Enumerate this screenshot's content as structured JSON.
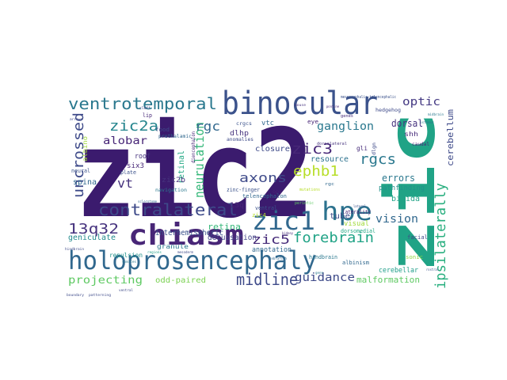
{
  "words": [
    {
      "text": "zic2",
      "color": "#3b1b6e"
    },
    {
      "text": "zic",
      "color": "#20a386"
    },
    {
      "text": "binocular",
      "color": "#3b528b"
    },
    {
      "text": "holoprosencephaly",
      "color": "#31688e"
    },
    {
      "text": "chiasm",
      "color": "#482677"
    },
    {
      "text": "hpe",
      "color": "#2c728e"
    },
    {
      "text": "zic1",
      "color": "#31688e"
    },
    {
      "text": "ventrotemporal",
      "color": "#2a788e"
    },
    {
      "text": "uncrossed",
      "color": "#3e4a89"
    },
    {
      "text": "contralateral",
      "color": "#3e4a89"
    },
    {
      "text": "ipsilaterally",
      "color": "#29af7f"
    },
    {
      "text": "midline",
      "color": "#3e4a89"
    },
    {
      "text": "neurulation",
      "color": "#35b779"
    },
    {
      "text": "ephb1",
      "color": "#b8de29"
    },
    {
      "text": "zic3",
      "color": "#482878"
    },
    {
      "text": "rgcs",
      "color": "#2a788e"
    },
    {
      "text": "13q32",
      "color": "#46337e"
    },
    {
      "text": "zic2a",
      "color": "#25858e"
    },
    {
      "text": "forebrain",
      "color": "#20a386"
    },
    {
      "text": "axons",
      "color": "#3e4a89"
    },
    {
      "text": "zic5",
      "color": "#472c7a"
    },
    {
      "text": "guidance",
      "color": "#3e4a89"
    },
    {
      "text": "vision",
      "color": "#31688e"
    },
    {
      "text": "projecting",
      "color": "#5ec962"
    },
    {
      "text": "ganglion",
      "color": "#2a788e"
    },
    {
      "text": "optic",
      "color": "#443983"
    },
    {
      "text": "alobar",
      "color": "#482677"
    },
    {
      "text": "rgc",
      "color": "#31688e"
    },
    {
      "text": "vt",
      "color": "#46337e"
    },
    {
      "text": "cerebellum",
      "color": "#3e4a89"
    },
    {
      "text": "dorsal",
      "color": "#46327e"
    },
    {
      "text": "errors",
      "color": "#2a788e"
    },
    {
      "text": "malformation",
      "color": "#5ec962"
    },
    {
      "text": "bifida",
      "color": "#20a386"
    },
    {
      "text": "spina",
      "color": "#31688e"
    },
    {
      "text": "retinal",
      "color": "#22a884"
    },
    {
      "text": "closure",
      "color": "#3e4a89"
    },
    {
      "text": "resource",
      "color": "#2c728e"
    },
    {
      "text": "pathfinding",
      "color": "#21918c"
    },
    {
      "text": "retina",
      "color": "#35b779"
    },
    {
      "text": "decussation",
      "color": "#414487"
    },
    {
      "text": "interhemispheric",
      "color": "#3b528b"
    },
    {
      "text": "odd-paired",
      "color": "#7ad151"
    },
    {
      "text": "annotation",
      "color": "#31688e"
    },
    {
      "text": "geniculate",
      "color": "#238a8d"
    },
    {
      "text": "cerebellar",
      "color": "#1f9e89"
    },
    {
      "text": "tube",
      "color": "#3e4a89"
    },
    {
      "text": "visual",
      "color": "#a0da39"
    },
    {
      "text": "13q",
      "color": "#482677"
    },
    {
      "text": "dlhp",
      "color": "#46337e"
    },
    {
      "text": "zic2b",
      "color": "#46337e"
    },
    {
      "text": "six3",
      "color": "#482878"
    },
    {
      "text": "roof",
      "color": "#46337e"
    },
    {
      "text": "albino",
      "color": "#9fda3a"
    },
    {
      "text": "granule",
      "color": "#2a788e"
    },
    {
      "text": "repulsion",
      "color": "#21918c"
    },
    {
      "text": "zinc-finger",
      "color": "#3b528b"
    },
    {
      "text": "telencephalon",
      "color": "#31688e"
    },
    {
      "text": "hindbrain",
      "color": "#2a788e"
    },
    {
      "text": "dorsomedial",
      "color": "#22a884"
    },
    {
      "text": "albinism",
      "color": "#31688e"
    },
    {
      "text": "facial",
      "color": "#3e4a89"
    },
    {
      "text": "laterality",
      "color": "#482677"
    },
    {
      "text": "sonic",
      "color": "#8fd744"
    },
    {
      "text": "shh",
      "color": "#472c7a"
    },
    {
      "text": "gli",
      "color": "#472c7a"
    },
    {
      "text": "ventral",
      "color": "#3b528b"
    },
    {
      "text": "zic4",
      "color": "#b5de2b"
    },
    {
      "text": "vtc",
      "color": "#31688e"
    },
    {
      "text": "eye",
      "color": "#482677"
    },
    {
      "text": "food",
      "color": "#3e4a89"
    },
    {
      "text": "lip",
      "color": "#482878"
    },
    {
      "text": "plate",
      "color": "#3b528b"
    },
    {
      "text": "neural",
      "color": "#3b528b"
    },
    {
      "text": "navigation",
      "color": "#2a788e"
    },
    {
      "text": "prethalamic",
      "color": "#31688e"
    },
    {
      "text": "anomalies",
      "color": "#3e4a89"
    },
    {
      "text": "ops",
      "color": "#482677"
    },
    {
      "text": "caudal",
      "color": "#482677"
    },
    {
      "text": "hedgehog",
      "color": "#3e4a89"
    },
    {
      "text": "crgcs",
      "color": "#3b528b"
    },
    {
      "text": "dorsolateral",
      "color": "#46337e"
    },
    {
      "text": "diencephalon",
      "color": "#482677"
    },
    {
      "text": "mesencephalic-telencephalic",
      "color": "#3b528b"
    },
    {
      "text": "cleft",
      "color": "#3e4a89"
    },
    {
      "text": "mutations",
      "color": "#b8de29"
    },
    {
      "text": "genes",
      "color": "#472c7a"
    },
    {
      "text": "dlgn",
      "color": "#3e4a89"
    },
    {
      "text": "rgc",
      "color": "#31688e"
    },
    {
      "text": "hindbrain",
      "color": "#3e4a89"
    },
    {
      "text": "regions",
      "color": "#1f9e89"
    },
    {
      "text": "boundary",
      "color": "#3e4a89"
    },
    {
      "text": "patterning",
      "color": "#3e4a89"
    },
    {
      "text": "ventral",
      "color": "#3e4a89"
    },
    {
      "text": "isthmus",
      "color": "#2a788e"
    },
    {
      "text": "midbrain",
      "color": "#2a788e"
    },
    {
      "text": "rostral",
      "color": "#3b528b"
    },
    {
      "text": "pontine",
      "color": "#482677"
    },
    {
      "text": "arrows",
      "color": "#3e4a89"
    },
    {
      "text": "zebrafish",
      "color": "#31688e"
    },
    {
      "text": "mouse",
      "color": "#46337e"
    },
    {
      "text": "gene",
      "color": "#2a788e"
    },
    {
      "text": "kidney",
      "color": "#472c7a"
    },
    {
      "text": "periotic",
      "color": "#5ec962"
    },
    {
      "text": "sclerotome",
      "color": "#31688e"
    },
    {
      "text": "somites",
      "color": "#2a788e"
    },
    {
      "text": "mesoderm",
      "color": "#3e4a89"
    },
    {
      "text": "lateral",
      "color": "#3b528b"
    }
  ]
}
